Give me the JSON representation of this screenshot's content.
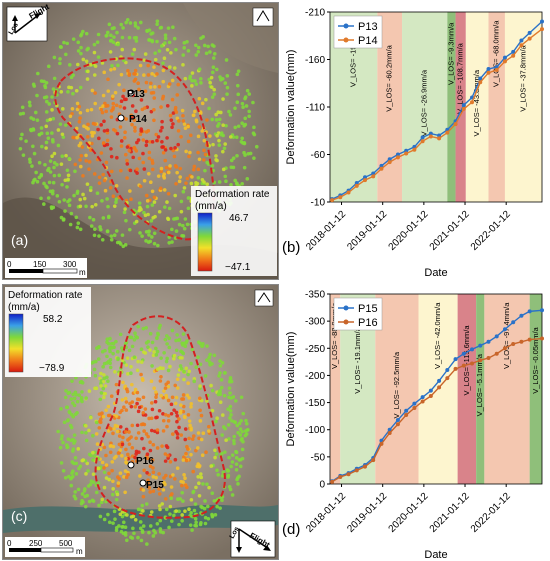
{
  "panel_a": {
    "letter": "(a)",
    "flight_label": "Flight",
    "los_label": "Los",
    "colorbar": {
      "title": "Deformation rate",
      "unit": "(mm/a)",
      "max": "46.7",
      "min": "−47.1"
    },
    "points": [
      "P13",
      "P14"
    ],
    "scale": {
      "ticks": [
        "0",
        "150",
        "300"
      ],
      "unit": "m"
    }
  },
  "panel_c": {
    "letter": "(c)",
    "flight_label": "Flight",
    "los_label": "Los",
    "colorbar": {
      "title": "Deformation rate",
      "unit": "(mm/a)",
      "max": "58.2",
      "min": "−78.9"
    },
    "points": [
      "P16",
      "P15"
    ],
    "scale": {
      "ticks": [
        "0",
        "250",
        "500"
      ],
      "unit": "m"
    }
  },
  "chart_data": [
    {
      "type": "line",
      "panel": "(b)",
      "xlabel": "Date",
      "ylabel": "Deformation  value(mm)",
      "x_ticks": [
        "2018-01-12",
        "2019-01-12",
        "2020-01-12",
        "2021-01-12",
        "2022-01-12"
      ],
      "y_ticks": [
        -210,
        -160,
        -110,
        -60,
        -10
      ],
      "ylim": [
        -210,
        -10
      ],
      "y_inverted": true,
      "xlim": [
        2017.75,
        2022.9
      ],
      "legend": "top-left",
      "series": [
        {
          "name": "P13",
          "color": "#2a72c8",
          "x": [
            2017.8,
            2018.0,
            2018.2,
            2018.4,
            2018.6,
            2018.8,
            2019.0,
            2019.2,
            2019.4,
            2019.6,
            2019.8,
            2020.0,
            2020.2,
            2020.4,
            2020.6,
            2020.8,
            2021.0,
            2021.2,
            2021.4,
            2021.6,
            2021.8,
            2022.0,
            2022.2,
            2022.4,
            2022.6,
            2022.9
          ],
          "y": [
            -13,
            -17,
            -22,
            -30,
            -36,
            -40,
            -48,
            -55,
            -60,
            -64,
            -68,
            -78,
            -82,
            -80,
            -86,
            -95,
            -112,
            -120,
            -140,
            -150,
            -152,
            -162,
            -168,
            -180,
            -188,
            -200
          ]
        },
        {
          "name": "P14",
          "color": "#e07a2c",
          "x": [
            2017.8,
            2018.0,
            2018.2,
            2018.4,
            2018.6,
            2018.8,
            2019.0,
            2019.2,
            2019.4,
            2019.6,
            2019.8,
            2020.0,
            2020.2,
            2020.4,
            2020.6,
            2020.8,
            2021.0,
            2021.2,
            2021.4,
            2021.6,
            2021.8,
            2022.0,
            2022.2,
            2022.4,
            2022.6,
            2022.9
          ],
          "y": [
            -12,
            -15,
            -20,
            -27,
            -33,
            -37,
            -45,
            -52,
            -57,
            -61,
            -65,
            -74,
            -79,
            -77,
            -83,
            -92,
            -108,
            -115,
            -136,
            -146,
            -149,
            -158,
            -164,
            -175,
            -182,
            -192
          ]
        }
      ],
      "bands": [
        {
          "x0": 2017.75,
          "x1": 2018.9,
          "color": "#d4e8c2",
          "label": "V_LOS= -19.0mm/a"
        },
        {
          "x0": 2018.9,
          "x1": 2019.5,
          "color": "#f4c7b0",
          "label": "V_LOS= -60.2mm/a"
        },
        {
          "x0": 2019.5,
          "x1": 2020.6,
          "color": "#d4e8c2",
          "label": "V_LOS= -26.9mm/a"
        },
        {
          "x0": 2020.6,
          "x1": 2020.8,
          "color": "#8fbf7a",
          "label": "V_LOS= -9.3mm/a"
        },
        {
          "x0": 2020.8,
          "x1": 2021.05,
          "color": "#d9838a",
          "label": "V_LOS= -108.7mm/a"
        },
        {
          "x0": 2021.05,
          "x1": 2021.6,
          "color": "#fdf5cf",
          "label": "V_LOS= -43.8mm/a"
        },
        {
          "x0": 2021.6,
          "x1": 2022.0,
          "color": "#f4c7b0",
          "label": "V_LOS= -68.0mm/a"
        },
        {
          "x0": 2022.0,
          "x1": 2022.9,
          "color": "#fdf5cf",
          "label": "V_LOS= -37.8mm/a"
        }
      ]
    },
    {
      "type": "line",
      "panel": "(d)",
      "xlabel": "Date",
      "ylabel": "Deformation  value(mm)",
      "x_ticks": [
        "2018-01-12",
        "2019-01-12",
        "2020-01-12",
        "2021-01-12",
        "2022-01-12"
      ],
      "y_ticks": [
        -350,
        -300,
        -250,
        -200,
        -150,
        -100,
        -50,
        0
      ],
      "ylim": [
        -350,
        0
      ],
      "y_inverted": true,
      "xlim": [
        2017.75,
        2022.9
      ],
      "legend": "top-left",
      "series": [
        {
          "name": "P15",
          "color": "#2a72c8",
          "x": [
            2017.8,
            2018.0,
            2018.2,
            2018.4,
            2018.6,
            2018.8,
            2019.0,
            2019.2,
            2019.4,
            2019.6,
            2019.8,
            2020.0,
            2020.2,
            2020.4,
            2020.6,
            2020.8,
            2021.0,
            2021.2,
            2021.4,
            2021.6,
            2021.8,
            2022.0,
            2022.2,
            2022.4,
            2022.6,
            2022.9
          ],
          "y": [
            -5,
            -15,
            -20,
            -28,
            -35,
            -48,
            -80,
            -100,
            -118,
            -135,
            -148,
            -160,
            -172,
            -190,
            -210,
            -230,
            -240,
            -248,
            -255,
            -262,
            -272,
            -285,
            -298,
            -310,
            -318,
            -320
          ]
        },
        {
          "name": "P16",
          "color": "#c8652a",
          "x": [
            2017.8,
            2018.0,
            2018.2,
            2018.4,
            2018.6,
            2018.8,
            2019.0,
            2019.2,
            2019.4,
            2019.6,
            2019.8,
            2020.0,
            2020.2,
            2020.4,
            2020.6,
            2020.8,
            2021.0,
            2021.2,
            2021.4,
            2021.6,
            2021.8,
            2022.0,
            2022.2,
            2022.4,
            2022.6,
            2022.9
          ],
          "y": [
            -4,
            -13,
            -18,
            -25,
            -32,
            -44,
            -74,
            -94,
            -110,
            -127,
            -140,
            -152,
            -162,
            -178,
            -195,
            -212,
            -218,
            -222,
            -228,
            -232,
            -240,
            -250,
            -258,
            -262,
            -266,
            -268
          ]
        }
      ],
      "bands": [
        {
          "x0": 2017.75,
          "x1": 2018.0,
          "color": "#f4c7b0",
          "label": "V_LOS= -88.9mm/a"
        },
        {
          "x0": 2018.0,
          "x1": 2018.85,
          "color": "#d4e8c2",
          "label": "V_LOS= -19.1mm/a"
        },
        {
          "x0": 2018.85,
          "x1": 2019.9,
          "color": "#f4c7b0",
          "label": "V_LOS= -92.5mm/a"
        },
        {
          "x0": 2019.9,
          "x1": 2020.85,
          "color": "#fdf5cf",
          "label": "V_LOS= -42.0mm/a"
        },
        {
          "x0": 2020.85,
          "x1": 2021.3,
          "color": "#d9838a",
          "label": "V_LOS= -115.6mm/a"
        },
        {
          "x0": 2021.3,
          "x1": 2021.5,
          "color": "#8fbf7a",
          "label": "V_LOS= -5.1mm/a"
        },
        {
          "x0": 2021.5,
          "x1": 2022.6,
          "color": "#f4c7b0",
          "label": "V_LOS= -97.4mm/a"
        },
        {
          "x0": 2022.6,
          "x1": 2022.9,
          "color": "#8fbf7a",
          "label": "V_LOS= -0.05mm/a"
        }
      ]
    }
  ]
}
